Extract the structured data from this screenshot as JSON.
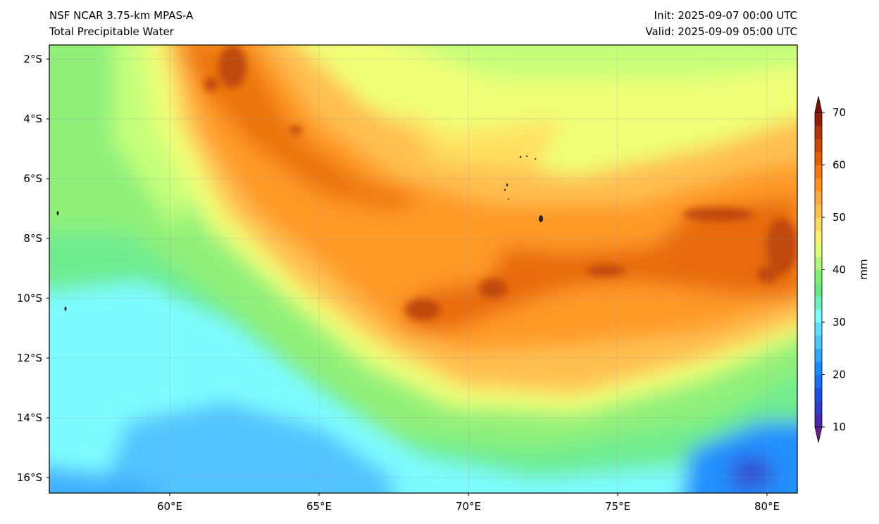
{
  "header": {
    "model": "NSF NCAR 3.75-km MPAS-A",
    "field": "Total Precipitable Water",
    "init": "Init: 2025-09-07 00:00 UTC",
    "valid": "Valid: 2025-09-09 05:00 UTC"
  },
  "map": {
    "lat_ticks": [
      "2°S",
      "4°S",
      "6°S",
      "8°S",
      "10°S",
      "12°S",
      "14°S",
      "16°S"
    ],
    "lon_ticks": [
      "60°E",
      "65°E",
      "70°E",
      "75°E",
      "80°E"
    ],
    "extent": {
      "lon": [
        56,
        81
      ],
      "lat": [
        -1.5,
        -16.5
      ]
    }
  },
  "colorbar": {
    "label": "mm",
    "ticks": [
      "10",
      "20",
      "30",
      "40",
      "50",
      "60",
      "70"
    ],
    "range": [
      10,
      70
    ],
    "colors": [
      "#6a1a9a",
      "#4a2aa8",
      "#3040c0",
      "#2050e0",
      "#1a70f0",
      "#1a8cff",
      "#30a8ff",
      "#50c4ff",
      "#60dcff",
      "#7efcff",
      "#70f0c0",
      "#6ae880",
      "#80f070",
      "#b0f878",
      "#e0ff78",
      "#fff070",
      "#ffd860",
      "#ffc050",
      "#ffaa40",
      "#ff9020",
      "#f07810",
      "#e06008",
      "#c84a08",
      "#b03808",
      "#902008",
      "#7a1008"
    ]
  }
}
